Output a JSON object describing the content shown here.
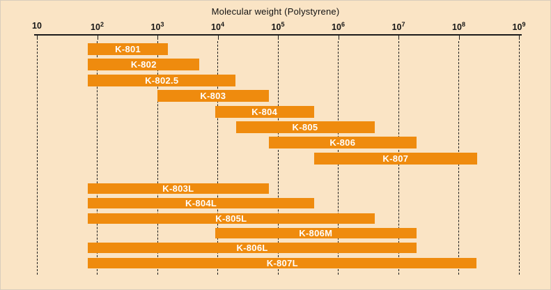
{
  "chart_data": {
    "type": "bar",
    "subtype": "horizontal-range-bars",
    "title": "Molecular weight (Polystyrene)",
    "x_scale": "log10",
    "x_min": 10,
    "x_max": 1000000000,
    "grid": "dashed-vertical",
    "legend": "none",
    "x_ticks": [
      {
        "mantissa": "10",
        "exponent": ""
      },
      {
        "mantissa": "10",
        "exponent": "2"
      },
      {
        "mantissa": "10",
        "exponent": "3"
      },
      {
        "mantissa": "10",
        "exponent": "4"
      },
      {
        "mantissa": "10",
        "exponent": "5"
      },
      {
        "mantissa": "10",
        "exponent": "6"
      },
      {
        "mantissa": "10",
        "exponent": "7"
      },
      {
        "mantissa": "10",
        "exponent": "8"
      },
      {
        "mantissa": "10",
        "exponent": "9"
      }
    ],
    "groups": [
      {
        "name": "top-group",
        "bars": [
          {
            "label": "K-801",
            "min": 70,
            "max": 1500
          },
          {
            "label": "K-802",
            "min": 70,
            "max": 5000
          },
          {
            "label": "K-802.5",
            "min": 70,
            "max": 20000
          },
          {
            "label": "K-803",
            "min": 1000,
            "max": 70000
          },
          {
            "label": "K-804",
            "min": 9000,
            "max": 400000
          },
          {
            "label": "K-805",
            "min": 20000,
            "max": 4000000
          },
          {
            "label": "K-806",
            "min": 70000,
            "max": 20000000
          },
          {
            "label": "K-807",
            "min": 400000,
            "max": 200000000
          }
        ]
      },
      {
        "name": "bottom-group",
        "bars": [
          {
            "label": "K-803L",
            "min": 70,
            "max": 70000
          },
          {
            "label": "K-804L",
            "min": 70,
            "max": 400000
          },
          {
            "label": "K-805L",
            "min": 70,
            "max": 4000000
          },
          {
            "label": "K-806M",
            "min": 9000,
            "max": 20000000
          },
          {
            "label": "K-806L",
            "min": 70,
            "max": 20000000
          },
          {
            "label": "K-807L",
            "min": 70,
            "max": 200000000
          }
        ]
      }
    ]
  },
  "colors": {
    "background": "#fae4c5",
    "bar": "#ef8b0e",
    "axis": "#1a1a1a",
    "bar_label": "#ffffff",
    "border": "#d8cdbd"
  }
}
